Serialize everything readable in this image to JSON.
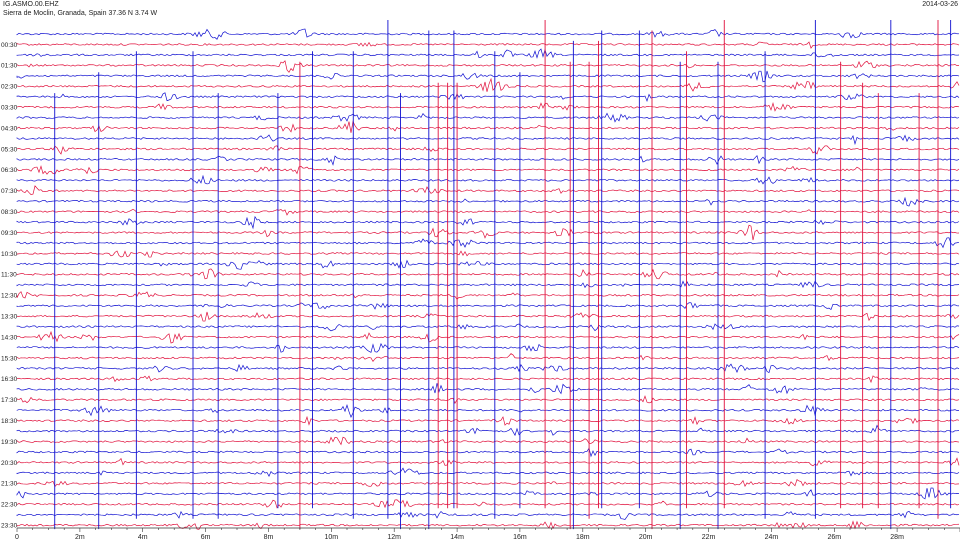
{
  "header": {
    "station": "IG.ASMO.00.EHZ",
    "location": "Sierra de Moclin, Granada, Spain  37.36 N 3.74 W",
    "date": "2014-03-26"
  },
  "colors": {
    "trace_a": "#1010d0",
    "trace_b": "#e0103c",
    "axis": "#333333"
  },
  "chart_data": {
    "type": "line",
    "title": "",
    "xlabel": "",
    "ylabel": "",
    "xlim_minutes": [
      0,
      30
    ],
    "x_ticks": [
      {
        "v": 0,
        "label": "0"
      },
      {
        "v": 2,
        "label": "2m"
      },
      {
        "v": 4,
        "label": "4m"
      },
      {
        "v": 6,
        "label": "6m"
      },
      {
        "v": 8,
        "label": "8m"
      },
      {
        "v": 10,
        "label": "10m"
      },
      {
        "v": 12,
        "label": "12m"
      },
      {
        "v": 14,
        "label": "14m"
      },
      {
        "v": 16,
        "label": "16m"
      },
      {
        "v": 18,
        "label": "18m"
      },
      {
        "v": 20,
        "label": "20m"
      },
      {
        "v": 22,
        "label": "22m"
      },
      {
        "v": 24,
        "label": "24m"
      },
      {
        "v": 26,
        "label": "26m"
      },
      {
        "v": 28,
        "label": "28m"
      }
    ],
    "rows": 48,
    "row_labels": [
      "00:30",
      "01:30",
      "02:30",
      "03:30",
      "04:30",
      "05:30",
      "06:30",
      "07:30",
      "08:30",
      "09:30",
      "10:30",
      "11:30",
      "12:30",
      "13:30",
      "14:30",
      "15:30",
      "16:30",
      "17:30",
      "18:30",
      "19:30",
      "20:30",
      "21:30",
      "22:30",
      "23:30"
    ],
    "events_red": [
      9.0,
      13.4,
      13.7,
      14.0,
      16.8,
      17.6,
      18.2,
      18.5,
      20.2,
      21.3,
      22.5,
      26.2,
      26.9,
      27.4,
      28.7,
      29.3
    ],
    "events_blue": [
      1.2,
      2.6,
      3.8,
      5.6,
      6.4,
      8.3,
      9.4,
      10.7,
      11.8,
      12.2,
      13.1,
      13.9,
      15.2,
      16.0,
      17.7,
      18.6,
      19.8,
      21.1,
      22.3,
      23.8,
      25.4,
      27.8,
      29.7
    ]
  }
}
